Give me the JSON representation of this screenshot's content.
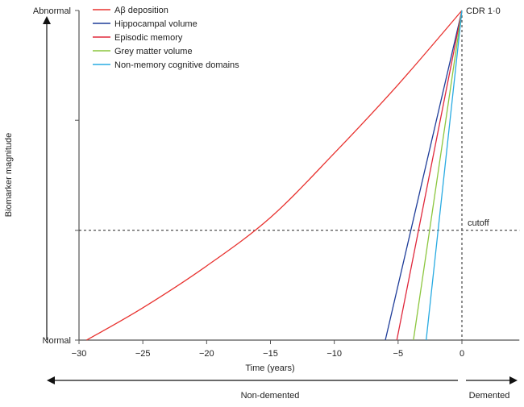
{
  "chart_data": {
    "type": "line",
    "xlabel": "Time (years)",
    "ylabel": "Biomarker magnitude",
    "xlim": [
      -30,
      4.5
    ],
    "ylim": [
      0,
      1
    ],
    "x_ticks": [
      -30,
      -25,
      -20,
      -15,
      -10,
      -5,
      0
    ],
    "x_tick_labels": [
      "−30",
      "−25",
      "−20",
      "−15",
      "−10",
      "−5",
      "0"
    ],
    "y_ticks": [
      0,
      0.333,
      0.667,
      1
    ],
    "y_tick_labels": {
      "0": "Normal",
      "1": "Abnormal"
    },
    "cutoff": {
      "value": 0.333,
      "label": "cutoff"
    },
    "event": {
      "x": 0,
      "label": "CDR 1·0"
    },
    "legend_position": "top-left",
    "series": [
      {
        "name": "Aβ deposition",
        "color": "#e8322f",
        "x": [
          -29.4,
          -25,
          -20,
          -15,
          -10,
          -5,
          0
        ],
        "y": [
          0,
          0.098,
          0.225,
          0.372,
          0.567,
          0.775,
          1
        ]
      },
      {
        "name": "Hippocampal volume",
        "color": "#1f3d99",
        "x": [
          -6.0,
          0
        ],
        "y": [
          0,
          1
        ]
      },
      {
        "name": "Episodic memory",
        "color": "#e0283c",
        "x": [
          -5.1,
          0
        ],
        "y": [
          0,
          1
        ]
      },
      {
        "name": "Grey matter volume",
        "color": "#8cc63f",
        "x": [
          -3.8,
          0
        ],
        "y": [
          0,
          1
        ]
      },
      {
        "name": "Non-memory cognitive domains",
        "color": "#29abe2",
        "x": [
          -2.8,
          0
        ],
        "y": [
          0,
          1
        ]
      }
    ],
    "bottom_labels": {
      "left": "Non-demented",
      "right": "Demented"
    }
  }
}
